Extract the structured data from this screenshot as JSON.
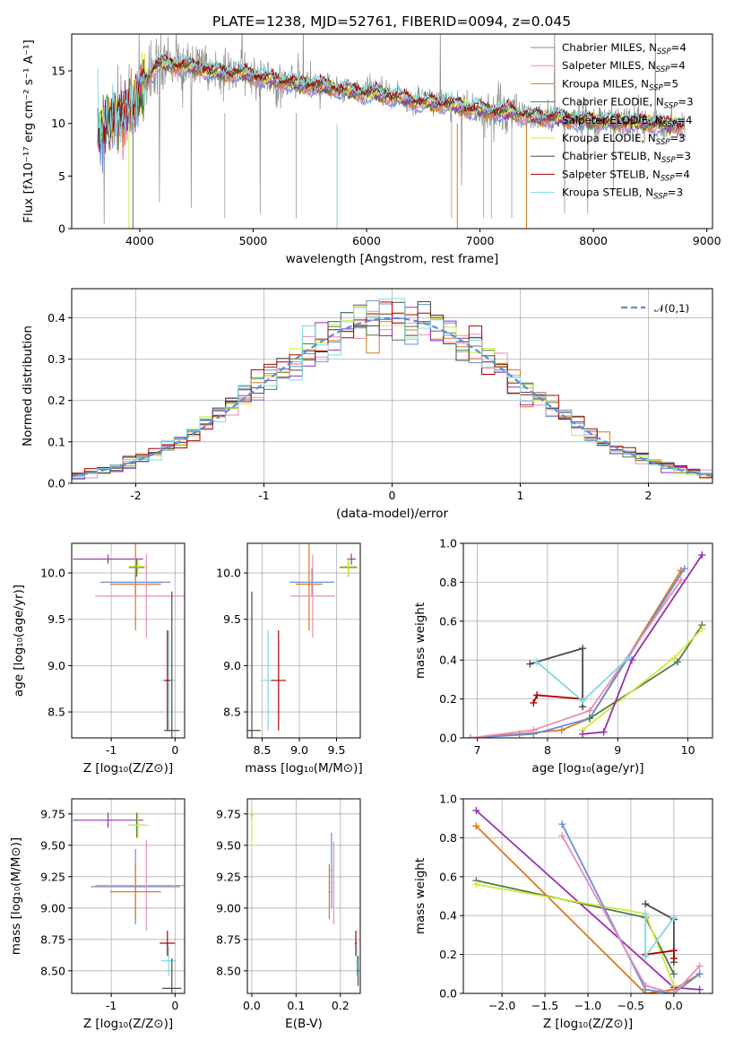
{
  "colors": {
    "Chabrier MILES": "#6a8fd8",
    "Salpeter MILES": "#e58fb8",
    "Kroupa MILES": "#d97a1f",
    "Chabrier ELODIE": "#4f7d4f",
    "Salpeter ELODIE": "#9a2fb0",
    "Kroupa ELODIE": "#d2ea3c",
    "Chabrier STELIB": "#4a4a4a",
    "Salpeter STELIB": "#b00000",
    "Kroupa STELIB": "#7fd8e0",
    "data": "#8c8c8c",
    "gaussian": "#5b8fd9"
  },
  "chart_data": [
    {
      "id": "spectrum",
      "type": "line",
      "title": "PLATE=1238, MJD=52761, FIBERID=0094, z=0.045",
      "xlabel": "wavelength [Angstrom, rest frame]",
      "ylabel": "Flux [fλ10⁻¹⁷ erg cm⁻² s⁻¹ A⁻¹]",
      "xlim": [
        3400,
        9050
      ],
      "ylim": [
        0,
        18.5
      ],
      "xticks": [
        4000,
        5000,
        6000,
        7000,
        8000,
        9000
      ],
      "yticks": [
        0,
        5,
        10,
        15
      ],
      "grid": false,
      "legend_position": "top-right",
      "legend": [
        {
          "label": "Chabrier MILES, N",
          "sub": "SSP",
          "suffix": "=4",
          "model": "Chabrier MILES"
        },
        {
          "label": "Salpeter MILES, N",
          "sub": "SSP",
          "suffix": "=4",
          "model": "Salpeter MILES"
        },
        {
          "label": "Kroupa MILES, N",
          "sub": "SSP",
          "suffix": "=5",
          "model": "Kroupa MILES"
        },
        {
          "label": "Chabrier ELODIE, N",
          "sub": "SSP",
          "suffix": "=3",
          "model": "Chabrier ELODIE"
        },
        {
          "label": "Salpeter ELODIE, N",
          "sub": "SSP",
          "suffix": "=4",
          "model": "Salpeter ELODIE"
        },
        {
          "label": "Kroupa ELODIE, N",
          "sub": "SSP",
          "suffix": "=3",
          "model": "Kroupa ELODIE"
        },
        {
          "label": "Chabrier STELIB, N",
          "sub": "SSP",
          "suffix": "=3",
          "model": "Chabrier STELIB"
        },
        {
          "label": "Salpeter STELIB, N",
          "sub": "SSP",
          "suffix": "=4",
          "model": "Salpeter STELIB"
        },
        {
          "label": "Kroupa STELIB, N",
          "sub": "SSP",
          "suffix": "=3",
          "model": "Kroupa STELIB"
        }
      ],
      "continuum": {
        "x": [
          3650,
          3750,
          3850,
          3950,
          4050,
          4150,
          4300,
          4500,
          4700,
          4900,
          5100,
          5300,
          5500,
          5700,
          5900,
          6100,
          6300,
          6500,
          6700,
          6900,
          7100,
          7300,
          7500,
          7700,
          7900,
          8100,
          8300,
          8500,
          8700
        ],
        "y": [
          9.5,
          10.3,
          10.8,
          12.0,
          14.0,
          15.6,
          15.6,
          15.3,
          14.8,
          14.8,
          14.3,
          13.9,
          13.6,
          13.4,
          13.0,
          12.8,
          12.4,
          12.0,
          11.9,
          11.4,
          11.2,
          11.0,
          10.6,
          10.5,
          10.3,
          10.2,
          10.1,
          10.0,
          9.8
        ]
      },
      "model_range": [
        3630,
        8800
      ],
      "data_range": [
        3630,
        8810
      ]
    },
    {
      "id": "residuals",
      "type": "bar",
      "xlabel": "(data-model)/error",
      "ylabel": "Normed distribution",
      "xlim": [
        -2.5,
        2.5
      ],
      "ylim": [
        0,
        0.47
      ],
      "xticks": [
        -2,
        -1,
        0,
        1,
        2
      ],
      "yticks": [
        0.0,
        0.1,
        0.2,
        0.3,
        0.4
      ],
      "yticklabels": [
        "0.0",
        "0.1",
        "0.2",
        "0.3",
        "0.4"
      ],
      "grid": true,
      "legend_position": "top-right",
      "legend_label": "𝒩(0,1)",
      "bin_width": 0.1
    },
    {
      "id": "age-vs-Z",
      "type": "scatter",
      "xlabel": "Z [log₁₀(Z/Z⊙)]",
      "ylabel": "age  [log₁₀(age/yr)]",
      "xlim": [
        -1.62,
        0.15
      ],
      "ylim": [
        8.22,
        10.32
      ],
      "xticks": [
        -1,
        0
      ],
      "yticks": [
        8.5,
        9.0,
        9.5,
        10.0
      ],
      "yticklabels": [
        "8.5",
        "9.0",
        "9.5",
        "10.0"
      ],
      "grid": true,
      "points": [
        {
          "model": "Salpeter ELODIE",
          "x": -1.05,
          "y": 10.15,
          "xerr": 0.55,
          "yerr": 0.05
        },
        {
          "model": "Chabrier ELODIE",
          "x": -0.6,
          "y": 10.06,
          "xerr": 0.12,
          "yerr": 0.1
        },
        {
          "model": "Kroupa ELODIE",
          "x": -0.58,
          "y": 10.07,
          "xerr": 0.16,
          "yerr": 0.08
        },
        {
          "model": "Chabrier MILES",
          "x": -0.62,
          "y": 9.9,
          "xerr": 0.55,
          "yerr": 0.15
        },
        {
          "model": "Kroupa MILES",
          "x": -0.62,
          "y": 9.88,
          "xerr": 0.4,
          "yerr": 0.5
        },
        {
          "model": "Salpeter MILES",
          "x": -0.45,
          "y": 9.75,
          "xerr": 0.8,
          "yerr": 0.45
        },
        {
          "model": "Kroupa STELIB",
          "x": -0.1,
          "y": 8.84,
          "xerr": 0.12,
          "yerr": 0.54
        },
        {
          "model": "Salpeter STELIB",
          "x": -0.12,
          "y": 8.84,
          "xerr": 0.05,
          "yerr": 0.54
        },
        {
          "model": "Chabrier STELIB",
          "x": -0.05,
          "y": 8.3,
          "xerr": 0.12,
          "yerr": 1.5
        }
      ]
    },
    {
      "id": "age-vs-mass",
      "type": "scatter",
      "xlabel": "mass [log₁₀(M/M⊙)]",
      "ylabel": "",
      "xlim": [
        8.3,
        9.82
      ],
      "ylim": [
        8.22,
        10.32
      ],
      "xticks": [
        8.5,
        9.0,
        9.5
      ],
      "xticklabels": [
        "8.5",
        "9.0",
        "9.5"
      ],
      "yticks": [
        8.5,
        9.0,
        9.5,
        10.0
      ],
      "yticklabels": [
        "8.5",
        "9.0",
        "9.5",
        "10.0"
      ],
      "grid": true,
      "points": [
        {
          "model": "Salpeter ELODIE",
          "x": 9.7,
          "y": 10.15,
          "xerr": 0.06,
          "yerr": 0.06
        },
        {
          "model": "Chabrier ELODIE",
          "x": 9.66,
          "y": 10.06,
          "xerr": 0.12,
          "yerr": 0.1
        },
        {
          "model": "Kroupa ELODIE",
          "x": 9.66,
          "y": 10.07,
          "xerr": 0.1,
          "yerr": 0.1
        },
        {
          "model": "Chabrier MILES",
          "x": 9.17,
          "y": 9.9,
          "xerr": 0.3,
          "yerr": 0.15
        },
        {
          "model": "Kroupa MILES",
          "x": 9.13,
          "y": 9.88,
          "xerr": 0.18,
          "yerr": 0.5
        },
        {
          "model": "Salpeter MILES",
          "x": 9.18,
          "y": 9.75,
          "xerr": 0.3,
          "yerr": 0.45
        },
        {
          "model": "Kroupa STELIB",
          "x": 8.58,
          "y": 8.84,
          "xerr": 0.1,
          "yerr": 0.54
        },
        {
          "model": "Salpeter STELIB",
          "x": 8.72,
          "y": 8.84,
          "xerr": 0.1,
          "yerr": 0.54
        },
        {
          "model": "Chabrier STELIB",
          "x": 8.36,
          "y": 8.3,
          "xerr": 0.12,
          "yerr": 1.5
        }
      ]
    },
    {
      "id": "weight-vs-age",
      "type": "line",
      "xlabel": "age  [log₁₀(age/yr)]",
      "ylabel": "mass weight",
      "xlim": [
        6.8,
        10.35
      ],
      "ylim": [
        0,
        1
      ],
      "xticks": [
        7,
        8,
        9,
        10
      ],
      "yticks": [
        0.0,
        0.2,
        0.4,
        0.6,
        0.8,
        1.0
      ],
      "yticklabels": [
        "0.0",
        "0.2",
        "0.4",
        "0.6",
        "0.8",
        "1.0"
      ],
      "grid": true,
      "series": [
        {
          "model": "Kroupa MILES",
          "x": [
            6.9,
            7.6,
            8.2,
            8.6,
            9.9
          ],
          "y": [
            0.0,
            0.02,
            0.04,
            0.1,
            0.86
          ]
        },
        {
          "model": "Chabrier MILES",
          "x": [
            6.9,
            7.8,
            8.6,
            9.95
          ],
          "y": [
            0.0,
            0.02,
            0.1,
            0.87
          ]
        },
        {
          "model": "Salpeter MILES",
          "x": [
            6.9,
            7.8,
            8.6,
            9.9
          ],
          "y": [
            0.0,
            0.04,
            0.14,
            0.81
          ]
        },
        {
          "model": "Chabrier ELODIE",
          "x": [
            8.6,
            9.85,
            10.2
          ],
          "y": [
            0.1,
            0.39,
            0.58
          ]
        },
        {
          "model": "Kroupa ELODIE",
          "x": [
            8.5,
            9.8,
            10.2
          ],
          "y": [
            0.04,
            0.41,
            0.56
          ]
        },
        {
          "model": "Salpeter ELODIE",
          "x": [
            8.5,
            8.8,
            9.2,
            10.2
          ],
          "y": [
            0.02,
            0.03,
            0.4,
            0.94
          ]
        },
        {
          "model": "Chabrier STELIB",
          "x": [
            7.75,
            8.5,
            8.5
          ],
          "y": [
            0.38,
            0.46,
            0.16
          ]
        },
        {
          "model": "Salpeter STELIB",
          "x": [
            7.8,
            7.85,
            8.5
          ],
          "y": [
            0.18,
            0.22,
            0.2
          ]
        },
        {
          "model": "Kroupa STELIB",
          "x": [
            7.85,
            8.5,
            9.15
          ],
          "y": [
            0.39,
            0.19,
            0.41
          ]
        }
      ]
    },
    {
      "id": "mass-vs-Z",
      "type": "scatter",
      "xlabel": "Z [log₁₀(Z/Z⊙)]",
      "ylabel": "mass [log₁₀(M/M⊙)]",
      "xlim": [
        -1.62,
        0.15
      ],
      "ylim": [
        8.32,
        9.87
      ],
      "xticks": [
        -1,
        0
      ],
      "yticks": [
        8.5,
        8.75,
        9.0,
        9.25,
        9.5,
        9.75
      ],
      "yticklabels": [
        "8.50",
        "8.75",
        "9.00",
        "9.25",
        "9.50",
        "9.75"
      ],
      "grid": true,
      "points": [
        {
          "model": "Salpeter ELODIE",
          "x": -1.05,
          "y": 9.7,
          "xerr": 0.55,
          "yerr": 0.06
        },
        {
          "model": "Chabrier ELODIE",
          "x": -0.6,
          "y": 9.66,
          "xerr": 0.12,
          "yerr": 0.1
        },
        {
          "model": "Kroupa ELODIE",
          "x": -0.58,
          "y": 9.66,
          "xerr": 0.16,
          "yerr": 0.1
        },
        {
          "model": "Chabrier MILES",
          "x": -0.62,
          "y": 9.17,
          "xerr": 0.7,
          "yerr": 0.3
        },
        {
          "model": "Kroupa MILES",
          "x": -0.62,
          "y": 9.13,
          "xerr": 0.4,
          "yerr": 0.22
        },
        {
          "model": "Salpeter MILES",
          "x": -0.45,
          "y": 9.18,
          "xerr": 0.8,
          "yerr": 0.36
        },
        {
          "model": "Salpeter STELIB",
          "x": -0.12,
          "y": 8.72,
          "xerr": 0.12,
          "yerr": 0.1
        },
        {
          "model": "Kroupa STELIB",
          "x": -0.1,
          "y": 8.58,
          "xerr": 0.12,
          "yerr": 0.12
        },
        {
          "model": "Chabrier STELIB",
          "x": -0.05,
          "y": 8.36,
          "xerr": 0.15,
          "yerr": 0.24
        }
      ]
    },
    {
      "id": "mass-vs-EBV",
      "type": "scatter",
      "xlabel": "E(B-V)",
      "ylabel": "",
      "xlim": [
        -0.01,
        0.245
      ],
      "ylim": [
        8.32,
        9.87
      ],
      "xticks": [
        0.0,
        0.1,
        0.2
      ],
      "xticklabels": [
        "0.0",
        "0.1",
        "0.2"
      ],
      "yticks": [
        8.5,
        8.75,
        9.0,
        9.25,
        9.5,
        9.75
      ],
      "yticklabels": [
        "8.50",
        "8.75",
        "9.00",
        "9.25",
        "9.50",
        "9.75"
      ],
      "grid": true,
      "points": [
        {
          "model": "Salpeter ELODIE",
          "x": 0.0,
          "y": 9.74,
          "xerr": 0.002,
          "yerr": 0.04
        },
        {
          "model": "Kroupa ELODIE",
          "x": 0.0,
          "y": 9.62,
          "xerr": 0.002,
          "yerr": 0.16
        },
        {
          "model": "Kroupa MILES",
          "x": 0.175,
          "y": 9.13,
          "xerr": 0.002,
          "yerr": 0.22
        },
        {
          "model": "Chabrier MILES",
          "x": 0.18,
          "y": 9.3,
          "xerr": 0.002,
          "yerr": 0.3
        },
        {
          "model": "Salpeter MILES",
          "x": 0.185,
          "y": 9.2,
          "xerr": 0.002,
          "yerr": 0.33
        },
        {
          "model": "Salpeter STELIB",
          "x": 0.235,
          "y": 8.72,
          "xerr": 0.002,
          "yerr": 0.1
        },
        {
          "model": "Kroupa STELIB",
          "x": 0.237,
          "y": 8.58,
          "xerr": 0.002,
          "yerr": 0.12
        },
        {
          "model": "Chabrier STELIB",
          "x": 0.24,
          "y": 8.5,
          "xerr": 0.002,
          "yerr": 0.12
        }
      ]
    },
    {
      "id": "weight-vs-Z",
      "type": "line",
      "xlabel": "Z [log₁₀(Z/Z⊙)]",
      "ylabel": "mass weight",
      "xlim": [
        -2.45,
        0.45
      ],
      "ylim": [
        0,
        1
      ],
      "xticks": [
        -2.0,
        -1.5,
        -1.0,
        -0.5,
        0.0
      ],
      "xticklabels": [
        "−2.0",
        "−1.5",
        "−1.0",
        "−0.5",
        "0.0"
      ],
      "yticks": [
        0.0,
        0.2,
        0.4,
        0.6,
        0.8,
        1.0
      ],
      "yticklabels": [
        "0.0",
        "0.2",
        "0.4",
        "0.6",
        "0.8",
        "1.0"
      ],
      "grid": true,
      "series": [
        {
          "model": "Kroupa MILES",
          "x": [
            -2.3,
            -0.33,
            0.0,
            0.3
          ],
          "y": [
            0.86,
            0.0,
            0.02,
            0.1
          ]
        },
        {
          "model": "Salpeter ELODIE",
          "x": [
            -2.3,
            0.0,
            0.3
          ],
          "y": [
            0.94,
            0.03,
            0.02
          ]
        },
        {
          "model": "Chabrier ELODIE",
          "x": [
            -2.3,
            -0.33,
            0.0
          ],
          "y": [
            0.58,
            0.39,
            0.1
          ]
        },
        {
          "model": "Kroupa ELODIE",
          "x": [
            -2.3,
            -0.33,
            0.0
          ],
          "y": [
            0.56,
            0.41,
            0.04
          ]
        },
        {
          "model": "Chabrier MILES",
          "x": [
            -1.3,
            -0.33,
            0.0,
            0.3
          ],
          "y": [
            0.87,
            0.02,
            0.0,
            0.1
          ]
        },
        {
          "model": "Salpeter MILES",
          "x": [
            -1.3,
            -0.33,
            0.0,
            0.3
          ],
          "y": [
            0.81,
            0.04,
            0.0,
            0.14
          ]
        },
        {
          "model": "Chabrier STELIB",
          "x": [
            -0.33,
            0.0,
            0.0
          ],
          "y": [
            0.46,
            0.38,
            0.16
          ]
        },
        {
          "model": "Salpeter STELIB",
          "x": [
            -0.33,
            0.0,
            0.0
          ],
          "y": [
            0.2,
            0.22,
            0.18
          ]
        },
        {
          "model": "Kroupa STELIB",
          "x": [
            -0.33,
            -0.33,
            0.0
          ],
          "y": [
            0.41,
            0.19,
            0.39
          ]
        }
      ]
    }
  ]
}
